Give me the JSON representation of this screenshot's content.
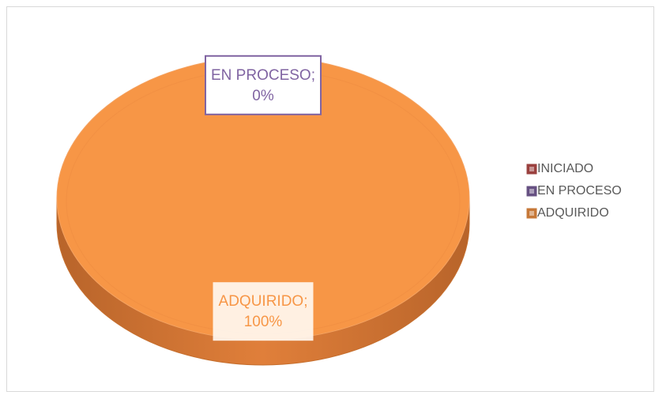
{
  "chart_data": {
    "type": "pie",
    "categories": [
      "INICIADO",
      "EN PROCESO",
      "ADQUIRIDO"
    ],
    "values": [
      0,
      0,
      100
    ],
    "value_labels": [
      null,
      "0%",
      "100%"
    ],
    "label_separator": ";",
    "colors": [
      "#c0504d",
      "#8064a2",
      "#f79646"
    ],
    "legend": "right"
  }
}
